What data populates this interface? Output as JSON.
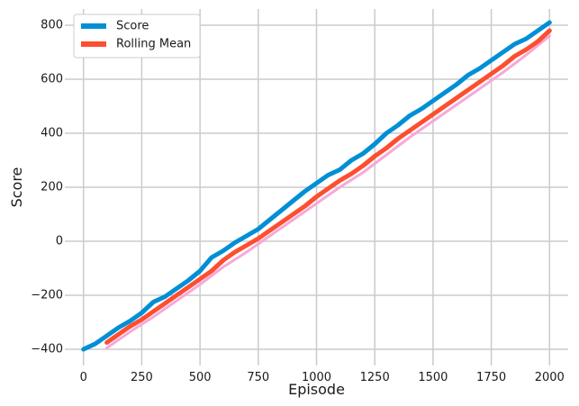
{
  "chart_data": {
    "type": "line",
    "title": "",
    "xlabel": "Episode",
    "ylabel": "Score",
    "xlim": [
      -80,
      2080
    ],
    "ylim": [
      -460,
      860
    ],
    "xticks": [
      0,
      250,
      500,
      750,
      1000,
      1250,
      1500,
      1750,
      2000
    ],
    "xtick_labels": [
      "0",
      "250",
      "500",
      "750",
      "1000",
      "1250",
      "1500",
      "1750",
      "2000"
    ],
    "yticks": [
      -400,
      -200,
      0,
      200,
      400,
      600,
      800
    ],
    "ytick_labels": [
      "−400",
      "−200",
      "0",
      "200",
      "400",
      "600",
      "800"
    ],
    "grid": true,
    "legend": "top-left",
    "series": [
      {
        "name": "Score",
        "color": "#008fd5",
        "x": [
          0,
          50,
          100,
          150,
          200,
          250,
          300,
          350,
          400,
          450,
          500,
          550,
          600,
          650,
          700,
          750,
          800,
          850,
          900,
          950,
          1000,
          1050,
          1100,
          1150,
          1200,
          1250,
          1300,
          1350,
          1400,
          1450,
          1500,
          1550,
          1600,
          1650,
          1700,
          1750,
          1800,
          1850,
          1900,
          1950,
          2000
        ],
        "y": [
          -400,
          -380,
          -350,
          -320,
          -295,
          -265,
          -225,
          -205,
          -175,
          -145,
          -110,
          -60,
          -35,
          -5,
          20,
          45,
          80,
          115,
          150,
          185,
          215,
          245,
          265,
          300,
          325,
          360,
          400,
          430,
          465,
          490,
          520,
          550,
          580,
          615,
          640,
          670,
          700,
          730,
          750,
          780,
          810
        ]
      },
      {
        "name": "Rolling Mean",
        "color": "#fc4f30",
        "x": [
          100,
          150,
          200,
          250,
          300,
          350,
          400,
          450,
          500,
          550,
          600,
          650,
          700,
          750,
          800,
          850,
          900,
          950,
          1000,
          1050,
          1100,
          1150,
          1200,
          1250,
          1300,
          1350,
          1400,
          1450,
          1500,
          1550,
          1600,
          1650,
          1700,
          1750,
          1800,
          1850,
          1900,
          1950,
          2000
        ],
        "y": [
          -375,
          -345,
          -315,
          -290,
          -260,
          -230,
          -200,
          -170,
          -140,
          -110,
          -70,
          -40,
          -15,
          10,
          40,
          70,
          100,
          130,
          165,
          195,
          225,
          250,
          280,
          315,
          345,
          380,
          410,
          440,
          470,
          500,
          530,
          560,
          590,
          620,
          650,
          685,
          710,
          740,
          780
        ]
      },
      {
        "name": "",
        "color": "#f7a8d8",
        "x": [
          100,
          200,
          300,
          400,
          500,
          600,
          700,
          800,
          900,
          1000,
          1100,
          1200,
          1300,
          1400,
          1500,
          1600,
          1700,
          1800,
          1900,
          2000
        ],
        "y": [
          -395,
          -335,
          -280,
          -220,
          -160,
          -95,
          -40,
          20,
          80,
          140,
          200,
          255,
          320,
          385,
          445,
          505,
          565,
          625,
          690,
          760
        ]
      }
    ]
  }
}
